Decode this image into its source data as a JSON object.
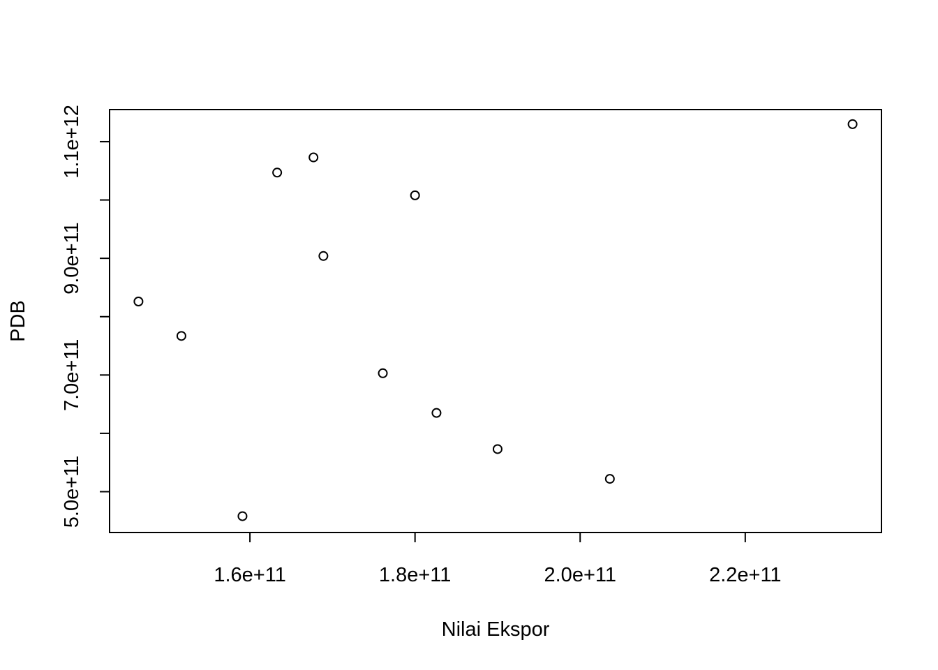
{
  "chart_data": {
    "type": "scatter",
    "title": "",
    "xlabel": "Nilai Ekspor",
    "ylabel": "PDB",
    "xlim": [
      143000000000,
      236500000000
    ],
    "ylim": [
      430000000000,
      1155000000000
    ],
    "x_ticks": [
      {
        "value": 160000000000,
        "label": "1.6e+11"
      },
      {
        "value": 180000000000,
        "label": "1.8e+11"
      },
      {
        "value": 200000000000,
        "label": "2.0e+11"
      },
      {
        "value": 220000000000,
        "label": "2.2e+11"
      }
    ],
    "y_ticks": [
      {
        "value": 500000000000,
        "label": "5.0e+11"
      },
      {
        "value": 600000000000,
        "label": ""
      },
      {
        "value": 700000000000,
        "label": "7.0e+11"
      },
      {
        "value": 800000000000,
        "label": ""
      },
      {
        "value": 900000000000,
        "label": "9.0e+11"
      },
      {
        "value": 1000000000000,
        "label": ""
      },
      {
        "value": 1100000000000,
        "label": "1.1e+12"
      }
    ],
    "grid": false,
    "legend": false,
    "point_shape": "open-circle",
    "color": "#000000",
    "points": [
      {
        "x": 146500000000,
        "y": 826000000000
      },
      {
        "x": 151700000000,
        "y": 767000000000
      },
      {
        "x": 159100000000,
        "y": 458000000000
      },
      {
        "x": 163300000000,
        "y": 1047000000000
      },
      {
        "x": 167700000000,
        "y": 1073000000000
      },
      {
        "x": 168900000000,
        "y": 904000000000
      },
      {
        "x": 176100000000,
        "y": 703000000000
      },
      {
        "x": 180000000000,
        "y": 1008000000000
      },
      {
        "x": 182600000000,
        "y": 635000000000
      },
      {
        "x": 190000000000,
        "y": 573000000000
      },
      {
        "x": 203600000000,
        "y": 522000000000
      },
      {
        "x": 233000000000,
        "y": 1130000000000
      }
    ]
  }
}
